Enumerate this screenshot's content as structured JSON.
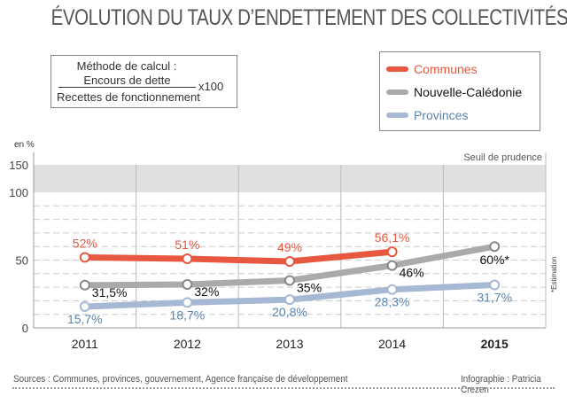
{
  "title": "ÉVOLUTION DU TAUX D’ENDETTEMENT DES COLLECTIVITÉS",
  "formula": {
    "heading": "Méthode de calcul :",
    "numerator": "Encours de dette",
    "denominator": "Recettes de fonctionnement",
    "multiplier": "x100"
  },
  "footer": {
    "sources": "Sources : Communes, provinces, gouvernement, Agence française de développement",
    "credit": "Infographie : Patricia Crezen"
  },
  "chart_data": {
    "type": "line",
    "ylabel": "en %",
    "categories": [
      "2011",
      "2012",
      "2013",
      "2014",
      "2015"
    ],
    "yticks": [
      "0",
      "50",
      "100",
      "150"
    ],
    "ylim": [
      0,
      150
    ],
    "axis_break": "compressed between 100 and 150",
    "band": {
      "from": 100,
      "to": 150,
      "label": "Seuil de prudence",
      "color": "#e0e0e0"
    },
    "note": "*Estimation",
    "grid": "dashed horizontal every 10",
    "legend_position": "top-right",
    "series": [
      {
        "name": "Communes",
        "color": "#e8573f",
        "label_color": "#e8573f",
        "values": [
          52,
          51,
          49,
          56.1,
          null
        ],
        "labels": [
          "52%",
          "51%",
          "49%",
          "56,1%",
          ""
        ]
      },
      {
        "name": "Nouvelle-Calédonie",
        "color": "#aaaaaa",
        "label_color": "#111111",
        "values": [
          31.5,
          32,
          35,
          46,
          60
        ],
        "labels": [
          "31,5%",
          "32%",
          "35%",
          "46%",
          "60%*"
        ]
      },
      {
        "name": "Provinces",
        "color": "#a6b8d4",
        "label_color": "#5a84ae",
        "values": [
          15.7,
          18.7,
          20.8,
          28.3,
          31.7
        ],
        "labels": [
          "15,7%",
          "18,7%",
          "20,8%",
          "28,3%",
          "31,7%"
        ]
      }
    ]
  }
}
